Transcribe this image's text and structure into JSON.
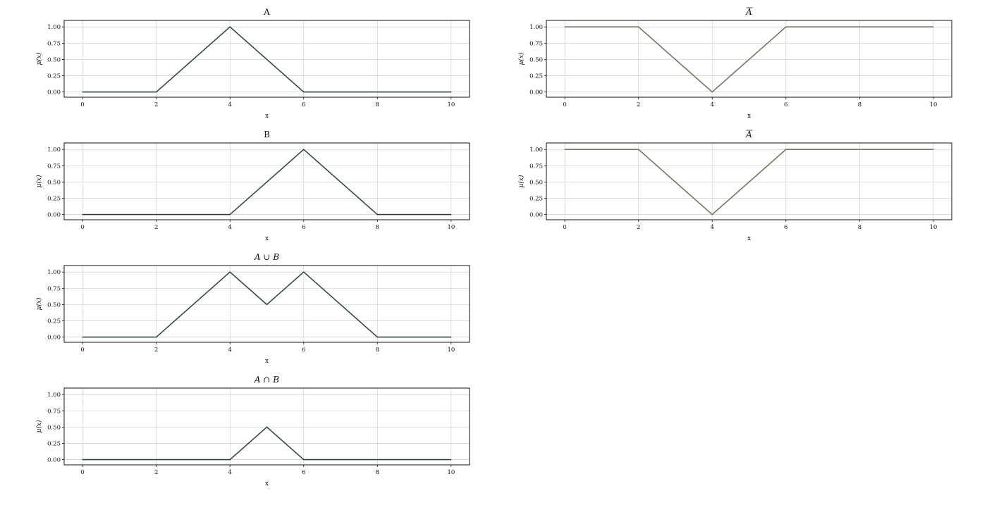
{
  "chart_data": [
    {
      "type": "line",
      "title": "A",
      "xlabel": "x",
      "ylabel": "μ(x)",
      "xlim": [
        -0.5,
        10.5
      ],
      "ylim": [
        -0.08,
        1.1
      ],
      "xticks": [
        "0",
        "2",
        "4",
        "6",
        "8",
        "10"
      ],
      "yticks": [
        "0.00",
        "0.25",
        "0.50",
        "0.75",
        "1.00"
      ],
      "grid": true,
      "line_color": "#3a3a3a",
      "baseline_color": "#3c7a4a",
      "x": [
        0,
        2,
        4,
        6,
        10
      ],
      "y": [
        0,
        0,
        1,
        0,
        0
      ]
    },
    {
      "type": "line",
      "title": "B",
      "xlabel": "x",
      "ylabel": "μ(x)",
      "xlim": [
        -0.5,
        10.5
      ],
      "ylim": [
        -0.08,
        1.1
      ],
      "xticks": [
        "0",
        "2",
        "4",
        "6",
        "8",
        "10"
      ],
      "yticks": [
        "0.00",
        "0.25",
        "0.50",
        "0.75",
        "1.00"
      ],
      "grid": true,
      "line_color": "#3a3a3a",
      "baseline_color": "#3c7a4a",
      "x": [
        0,
        4,
        6,
        8,
        10
      ],
      "y": [
        0,
        0,
        1,
        0,
        0
      ]
    },
    {
      "type": "line",
      "title": "A ∪ B",
      "xlabel": "x",
      "ylabel": "μ(x)",
      "xlim": [
        -0.5,
        10.5
      ],
      "ylim": [
        -0.08,
        1.1
      ],
      "xticks": [
        "0",
        "2",
        "4",
        "6",
        "8",
        "10"
      ],
      "yticks": [
        "0.00",
        "0.25",
        "0.50",
        "0.75",
        "1.00"
      ],
      "grid": true,
      "line_color": "#3a3a3a",
      "baseline_color": "#3c7a4a",
      "x": [
        0,
        2,
        4,
        5,
        6,
        8,
        10
      ],
      "y": [
        0,
        0,
        1,
        0.5,
        1,
        0,
        0
      ]
    },
    {
      "type": "line",
      "title": "A ∩ B",
      "xlabel": "x",
      "ylabel": "μ(x)",
      "xlim": [
        -0.5,
        10.5
      ],
      "ylim": [
        -0.08,
        1.1
      ],
      "xticks": [
        "0",
        "2",
        "4",
        "6",
        "8",
        "10"
      ],
      "yticks": [
        "0.00",
        "0.25",
        "0.50",
        "0.75",
        "1.00"
      ],
      "grid": true,
      "line_color": "#3a3a3a",
      "baseline_color": "#3c7a4a",
      "x": [
        0,
        4,
        5,
        6,
        10
      ],
      "y": [
        0,
        0,
        0.5,
        0,
        0
      ]
    },
    {
      "type": "line",
      "title": "A",
      "title_overline": true,
      "xlabel": "x",
      "ylabel": "μ(x)",
      "xlim": [
        -0.5,
        10.5
      ],
      "ylim": [
        -0.08,
        1.1
      ],
      "xticks": [
        "0",
        "2",
        "4",
        "6",
        "8",
        "10"
      ],
      "yticks": [
        "0.00",
        "0.25",
        "0.50",
        "0.75",
        "1.00"
      ],
      "grid": true,
      "line_color": "#777766",
      "baseline_color": "#777766",
      "x": [
        0,
        2,
        4,
        6,
        10
      ],
      "y": [
        1,
        1,
        0,
        1,
        1
      ]
    },
    {
      "type": "line",
      "title": "A",
      "title_overline": true,
      "xlabel": "x",
      "ylabel": "μ(x)",
      "xlim": [
        -0.5,
        10.5
      ],
      "ylim": [
        -0.08,
        1.1
      ],
      "xticks": [
        "0",
        "2",
        "4",
        "6",
        "8",
        "10"
      ],
      "yticks": [
        "0.00",
        "0.25",
        "0.50",
        "0.75",
        "1.00"
      ],
      "grid": true,
      "line_color": "#777766",
      "baseline_color": "#777766",
      "x": [
        0,
        2,
        4,
        6,
        10
      ],
      "y": [
        1,
        1,
        0,
        1,
        1
      ]
    }
  ]
}
